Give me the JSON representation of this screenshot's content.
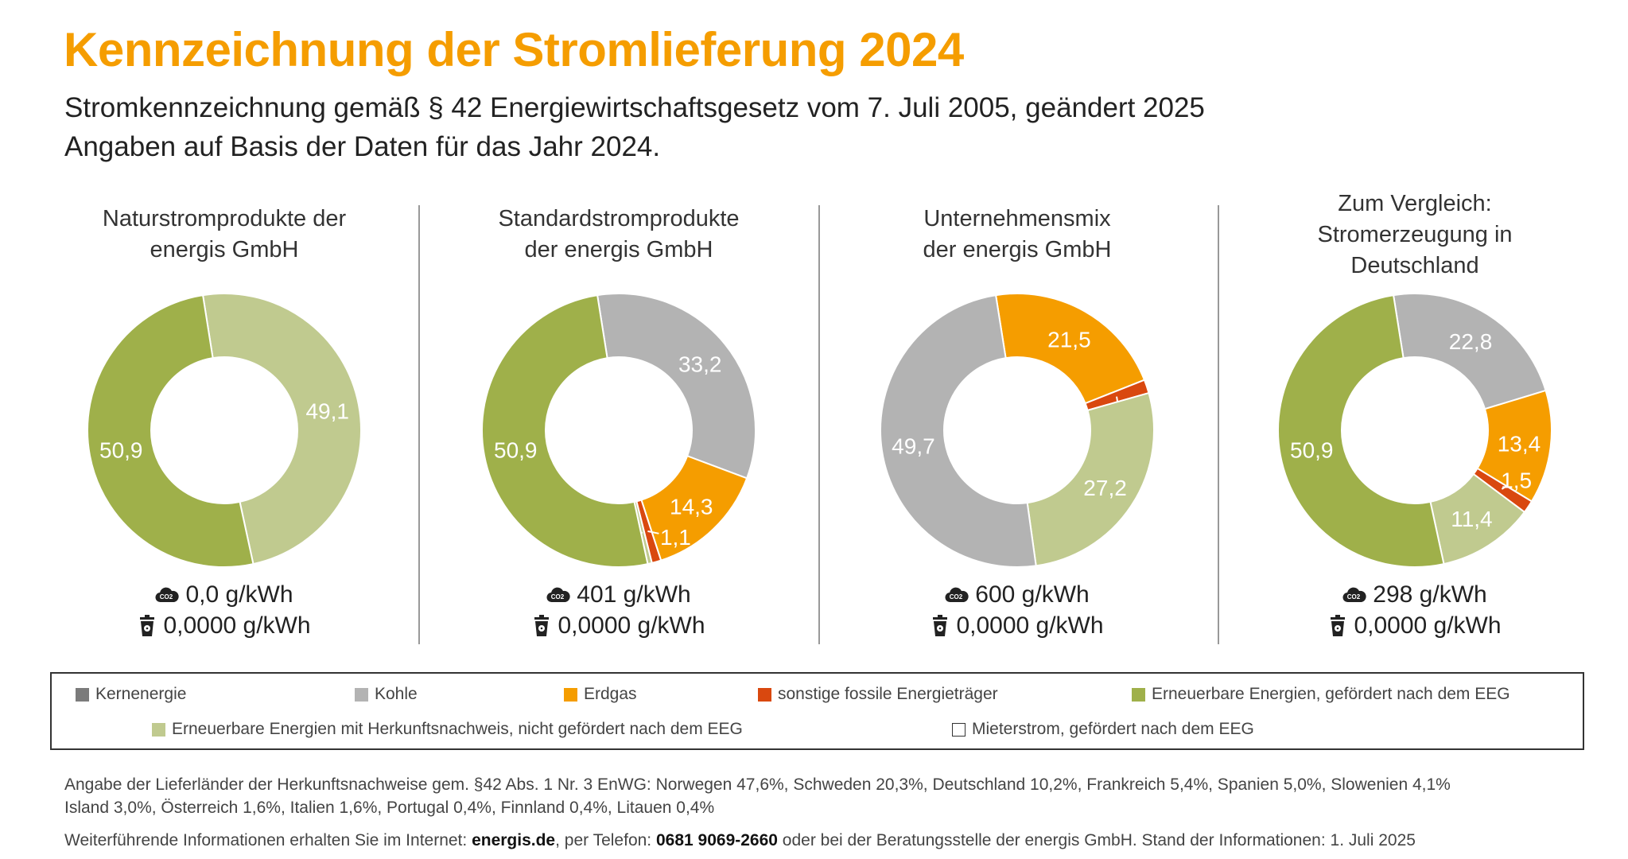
{
  "title": "Kennzeichnung der Stromlieferung 2024",
  "subtitle_lines": [
    "Stromkennzeichnung gemäß § 42 Energiewirtschaftsgesetz vom 7. Juli 2005, geändert 2025",
    "Angaben auf Basis der Daten für das Jahr 2024."
  ],
  "categories": {
    "kern": {
      "label": "Kernenergie",
      "color": "#7b7b7b"
    },
    "kohle": {
      "label": "Kohle",
      "color": "#b3b3b3"
    },
    "erdgas": {
      "label": "Erdgas",
      "color": "#f59d00"
    },
    "sonstige": {
      "label": "sonstige fossile Energieträger",
      "color": "#d9480f"
    },
    "eeg": {
      "label": "Erneuerbare Energien, gefördert nach dem EEG",
      "color": "#9fb04a"
    },
    "hkn": {
      "label": "Erneuerbare Energien mit Herkunftsnachweis, nicht gefördert nach dem EEG",
      "color": "#c0ca8f"
    },
    "mieter": {
      "label": "Mieterstrom, gefördert nach dem EEG",
      "color": "#ffffff"
    }
  },
  "legend_order": [
    "kern",
    "kohle",
    "erdgas",
    "sonstige",
    "eeg",
    "hkn",
    "mieter"
  ],
  "chart_data": [
    {
      "type": "pie",
      "title_lines": [
        "Naturstromprodukte der",
        "energis GmbH"
      ],
      "slices": [
        {
          "category": "hkn",
          "value": 49.1,
          "label": "49,1"
        },
        {
          "category": "eeg",
          "value": 50.9,
          "label": "50,9"
        }
      ],
      "co2": "0,0 g/kWh",
      "waste": "0,0000 g/kWh"
    },
    {
      "type": "pie",
      "title_lines": [
        "Standardstromprodukte",
        "der energis GmbH"
      ],
      "slices": [
        {
          "category": "kohle",
          "value": 33.2,
          "label": "33,2"
        },
        {
          "category": "erdgas",
          "value": 14.3,
          "label": "14,3"
        },
        {
          "category": "sonstige",
          "value": 1.1,
          "label": "1,1"
        },
        {
          "category": "hkn",
          "value": 0.5,
          "label": "0,5"
        },
        {
          "category": "eeg",
          "value": 50.9,
          "label": "50,9"
        }
      ],
      "co2": "401 g/kWh",
      "waste": "0,0000 g/kWh"
    },
    {
      "type": "pie",
      "title_lines": [
        "Unternehmensmix",
        "der energis GmbH"
      ],
      "slices": [
        {
          "category": "erdgas",
          "value": 21.5,
          "label": "21,5"
        },
        {
          "category": "sonstige",
          "value": 1.6,
          "label": "1,6"
        },
        {
          "category": "hkn",
          "value": 27.2,
          "label": "27,2"
        },
        {
          "category": "kohle",
          "value": 49.7,
          "label": "49,7"
        }
      ],
      "co2": "600 g/kWh",
      "waste": "0,0000 g/kWh"
    },
    {
      "type": "pie",
      "title_lines": [
        "Zum Vergleich:",
        "Stromerzeugung in",
        "Deutschland"
      ],
      "slices": [
        {
          "category": "kohle",
          "value": 22.8,
          "label": "22,8"
        },
        {
          "category": "erdgas",
          "value": 13.4,
          "label": "13,4"
        },
        {
          "category": "sonstige",
          "value": 1.5,
          "label": "1,5"
        },
        {
          "category": "hkn",
          "value": 11.4,
          "label": "11,4"
        },
        {
          "category": "eeg",
          "value": 50.9,
          "label": "50,9"
        }
      ],
      "co2": "298 g/kWh",
      "waste": "0,0000 g/kWh"
    }
  ],
  "footnote": {
    "countries_line1": "Angabe der Lieferländer der Herkunftsnachweise gem. §42 Abs. 1 Nr. 3 EnWG: Norwegen 47,6%, Schweden 20,3%, Deutschland 10,2%, Frankreich 5,4%, Spanien 5,0%, Slowenien 4,1%",
    "countries_line2": "Island 3,0%, Österreich 1,6%, Italien 1,6%, Portugal 0,4%, Finnland 0,4%, Litauen 0,4%",
    "info_prefix": "Weiterführende Informationen erhalten Sie im Internet: ",
    "website": "energis.de",
    "phone_prefix": ", per Telefon: ",
    "phone": "0681 9069-2660",
    "info_suffix": " oder bei der Beratungsstelle der energis GmbH. Stand der Informationen: 1. Juli 2025"
  }
}
